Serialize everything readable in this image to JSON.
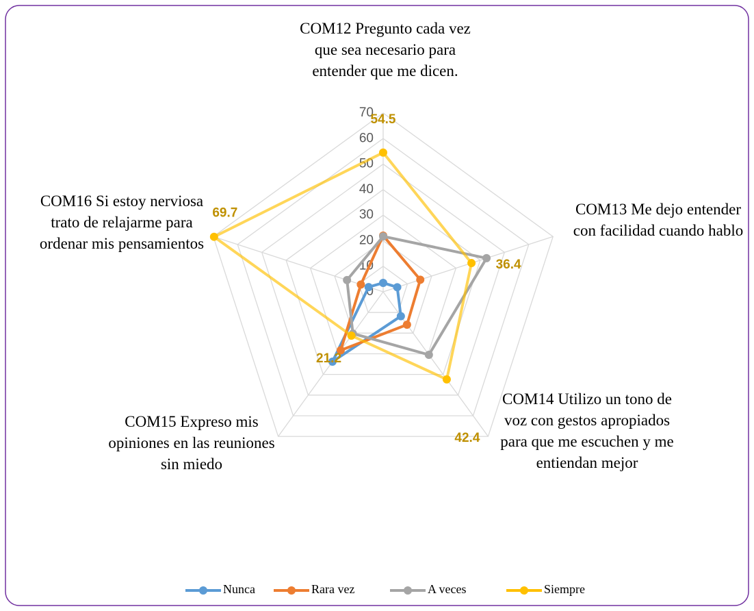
{
  "chart_data": {
    "type": "radar",
    "categories": [
      "COM12 Pregunto cada vez que sea necesario para entender que me dicen.",
      "COM13 Me dejo entender con facilidad cuando hablo",
      "COM14 Utilizo un tono de voz con gestos apropiados para que me escuchen y me entiendan mejor",
      "COM15 Expreso mis opiniones en las reuniones sin miedo",
      "COM16 Si estoy nerviosa trato de relajarme para ordenar mis pensamientos"
    ],
    "series": [
      {
        "name": "Nunca",
        "color": "#5b9bd5",
        "values": [
          3.5,
          5.8,
          11.8,
          33.8,
          6.0
        ]
      },
      {
        "name": "Rara vez",
        "color": "#ed7d31",
        "values": [
          22.0,
          15.3,
          15.9,
          28.3,
          9.2
        ]
      },
      {
        "name": "A veces",
        "color": "#a5a5a5",
        "values": [
          21.7,
          42.6,
          30.5,
          20.2,
          14.9
        ]
      },
      {
        "name": "Siempre",
        "color": "#ffc000",
        "values": [
          54.5,
          36.4,
          42.4,
          21.2,
          69.7
        ],
        "data_labels": true
      }
    ],
    "ylim": [
      0,
      70
    ],
    "yticks": [
      0,
      10,
      20,
      30,
      40,
      50,
      60,
      70
    ],
    "grid": true,
    "legend": "bottom"
  }
}
